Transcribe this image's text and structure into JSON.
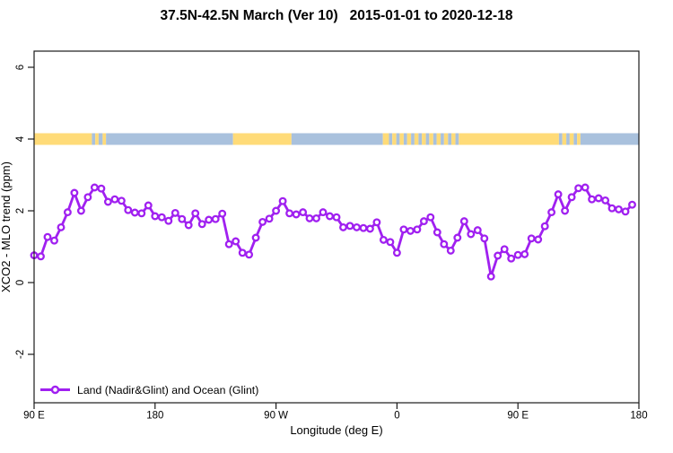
{
  "title": "37.5N-42.5N March (Ver 10)   2015-01-01 to 2020-12-18",
  "chart_data": {
    "type": "line",
    "title": "37.5N-42.5N March (Ver 10)   2015-01-01 to 2020-12-18",
    "xlabel": "Longitude (deg E)",
    "ylabel": "XCO2 - MLO trend (ppm)",
    "grid": "off",
    "x_axis": {
      "range_deg": [
        90,
        540
      ],
      "wraps_globe": true,
      "ticks": [
        {
          "deg": 90,
          "label": "90 E"
        },
        {
          "deg": 180,
          "label": "180"
        },
        {
          "deg": 270,
          "label": "90 W"
        },
        {
          "deg": 360,
          "label": "0"
        },
        {
          "deg": 450,
          "label": "90 E"
        },
        {
          "deg": 540,
          "label": "180"
        }
      ]
    },
    "y_axis": {
      "range": [
        -3.35,
        6.45
      ],
      "ticks": [
        -2,
        0,
        2,
        4,
        6
      ]
    },
    "legend": {
      "position": "bottom-left",
      "label": "Land (Nadir&Glint) and Ocean (Glint)"
    },
    "series": [
      {
        "name": "Land (Nadir&Glint) and Ocean (Glint)",
        "color": "#A020F0",
        "marker": "open-circle",
        "x_deg": [
          90,
          95,
          100,
          105,
          110,
          115,
          120,
          125,
          130,
          135,
          140,
          145,
          150,
          155,
          160,
          165,
          170,
          175,
          180,
          185,
          190,
          195,
          200,
          205,
          210,
          215,
          220,
          225,
          230,
          235,
          240,
          245,
          250,
          255,
          260,
          265,
          270,
          275,
          280,
          285,
          290,
          295,
          300,
          305,
          310,
          315,
          320,
          325,
          330,
          335,
          340,
          345,
          350,
          355,
          360,
          365,
          370,
          375,
          380,
          385,
          390,
          395,
          400,
          405,
          410,
          415,
          420,
          425,
          430,
          435,
          440,
          445,
          450,
          455,
          460,
          465,
          470,
          475,
          480,
          485,
          490,
          495,
          500,
          505,
          510,
          515,
          520,
          525,
          530,
          535
        ],
        "values": [
          0.76,
          0.73,
          1.27,
          1.17,
          1.54,
          1.96,
          2.5,
          2.0,
          2.38,
          2.65,
          2.62,
          2.25,
          2.32,
          2.28,
          2.02,
          1.95,
          1.93,
          2.15,
          1.85,
          1.82,
          1.72,
          1.94,
          1.77,
          1.6,
          1.93,
          1.63,
          1.75,
          1.77,
          1.92,
          1.07,
          1.15,
          0.83,
          0.78,
          1.25,
          1.69,
          1.78,
          2.0,
          2.27,
          1.93,
          1.9,
          1.96,
          1.79,
          1.79,
          1.96,
          1.85,
          1.82,
          1.54,
          1.58,
          1.54,
          1.52,
          1.5,
          1.68,
          1.19,
          1.13,
          0.83,
          1.48,
          1.44,
          1.48,
          1.71,
          1.82,
          1.4,
          1.07,
          0.89,
          1.25,
          1.71,
          1.35,
          1.46,
          1.23,
          0.17,
          0.75,
          0.93,
          0.67,
          0.77,
          0.79,
          1.23,
          1.2,
          1.57,
          1.96,
          2.46,
          2.0,
          2.38,
          2.63,
          2.65,
          2.32,
          2.35,
          2.29,
          2.07,
          2.04,
          1.98,
          2.17
        ]
      }
    ],
    "surface_band": {
      "y_value": 4,
      "land_color": "#FFDB78",
      "ocean_color": "#A9C1DD",
      "segments": [
        {
          "from": 90,
          "to": 133,
          "surface": "land"
        },
        {
          "from": 133,
          "to": 135.5,
          "surface": "ocean"
        },
        {
          "from": 135.5,
          "to": 138,
          "surface": "land"
        },
        {
          "from": 138,
          "to": 141,
          "surface": "ocean"
        },
        {
          "from": 141,
          "to": 143.5,
          "surface": "land"
        },
        {
          "from": 143.5,
          "to": 238,
          "surface": "ocean"
        },
        {
          "from": 238,
          "to": 281.5,
          "surface": "land"
        },
        {
          "from": 281.5,
          "to": 349.5,
          "surface": "ocean"
        },
        {
          "from": 349.5,
          "to": 354,
          "surface": "land"
        },
        {
          "from": 354,
          "to": 356.5,
          "surface": "ocean"
        },
        {
          "from": 356.5,
          "to": 359.5,
          "surface": "land"
        },
        {
          "from": 359.5,
          "to": 362,
          "surface": "ocean"
        },
        {
          "from": 362,
          "to": 365,
          "surface": "land"
        },
        {
          "from": 365,
          "to": 367.5,
          "surface": "ocean"
        },
        {
          "from": 367.5,
          "to": 370.5,
          "surface": "land"
        },
        {
          "from": 370.5,
          "to": 373,
          "surface": "ocean"
        },
        {
          "from": 373,
          "to": 376,
          "surface": "land"
        },
        {
          "from": 376,
          "to": 378.5,
          "surface": "ocean"
        },
        {
          "from": 378.5,
          "to": 381.5,
          "surface": "land"
        },
        {
          "from": 381.5,
          "to": 384,
          "surface": "ocean"
        },
        {
          "from": 384,
          "to": 387,
          "surface": "land"
        },
        {
          "from": 387,
          "to": 389.5,
          "surface": "ocean"
        },
        {
          "from": 389.5,
          "to": 392.5,
          "surface": "land"
        },
        {
          "from": 392.5,
          "to": 395,
          "surface": "ocean"
        },
        {
          "from": 395,
          "to": 398,
          "surface": "land"
        },
        {
          "from": 398,
          "to": 400.5,
          "surface": "ocean"
        },
        {
          "from": 400.5,
          "to": 403.5,
          "surface": "land"
        },
        {
          "from": 403.5,
          "to": 406,
          "surface": "ocean"
        },
        {
          "from": 406,
          "to": 480.5,
          "surface": "land"
        },
        {
          "from": 480.5,
          "to": 483,
          "surface": "ocean"
        },
        {
          "from": 483,
          "to": 486,
          "surface": "land"
        },
        {
          "from": 486,
          "to": 488.5,
          "surface": "ocean"
        },
        {
          "from": 488.5,
          "to": 491.5,
          "surface": "land"
        },
        {
          "from": 491.5,
          "to": 494,
          "surface": "ocean"
        },
        {
          "from": 494,
          "to": 496.5,
          "surface": "land"
        },
        {
          "from": 496.5,
          "to": 540,
          "surface": "ocean"
        }
      ]
    }
  }
}
